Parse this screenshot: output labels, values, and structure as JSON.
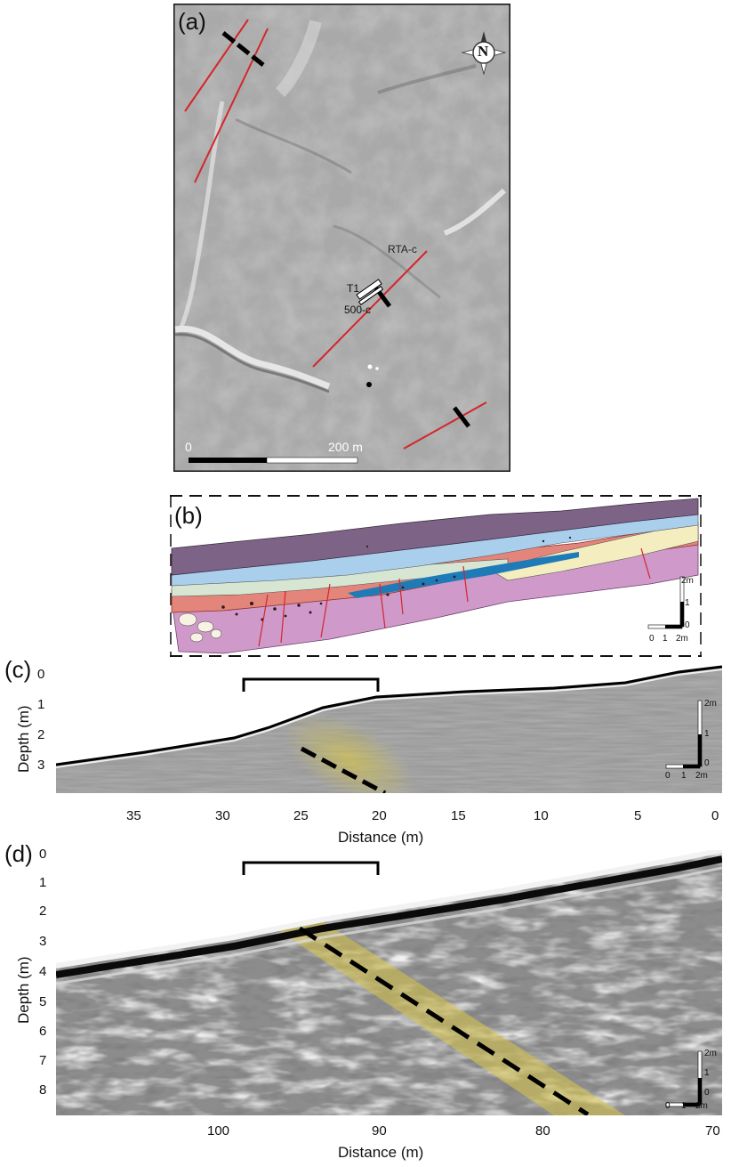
{
  "panel_a": {
    "label": "(a)",
    "north_label": "N",
    "scale_start": "0",
    "scale_end": "200 m",
    "annotations": {
      "rta": "RTA-c",
      "t1": "T1",
      "c500": "500-c"
    }
  },
  "panel_b": {
    "label": "(b)",
    "vscale_top": "2m",
    "vscale_mid": "1",
    "vscale_zero": "0",
    "hscale_labels": [
      "0",
      "1",
      "2m"
    ]
  },
  "panel_c": {
    "label": "(c)",
    "y_title": "Depth (m)",
    "x_title": "Distance (m)",
    "y_ticks": [
      "0",
      "1",
      "2",
      "3"
    ],
    "x_ticks": [
      "35",
      "30",
      "25",
      "20",
      "15",
      "10",
      "5",
      "0"
    ],
    "vscale_top": "2m",
    "vscale_mid": "1",
    "vscale_zero": "0",
    "hscale_labels": [
      "0",
      "1",
      "2m"
    ]
  },
  "panel_d": {
    "label": "(d)",
    "y_title": "Depth (m)",
    "x_title": "Distance (m)",
    "y_ticks": [
      "0",
      "1",
      "2",
      "3",
      "4",
      "5",
      "6",
      "7",
      "8"
    ],
    "x_ticks": [
      "100",
      "90",
      "80",
      "70"
    ],
    "vscale_top": "2m",
    "vscale_mid": "1",
    "vscale_zero": "0",
    "hscale_labels": [
      "0",
      "1",
      "2m"
    ]
  },
  "colors": {
    "fault_red": "#d4262b",
    "highlight_yellow": "#d8c648",
    "layer_purple": "#7d6487",
    "layer_blue": "#a9cfec",
    "layer_darkblue": "#1f7ab8",
    "layer_cream": "#f3edbf",
    "layer_salmon": "#e3857a",
    "layer_pink": "#cf9ac9",
    "layer_mint": "#d7e6d2"
  }
}
